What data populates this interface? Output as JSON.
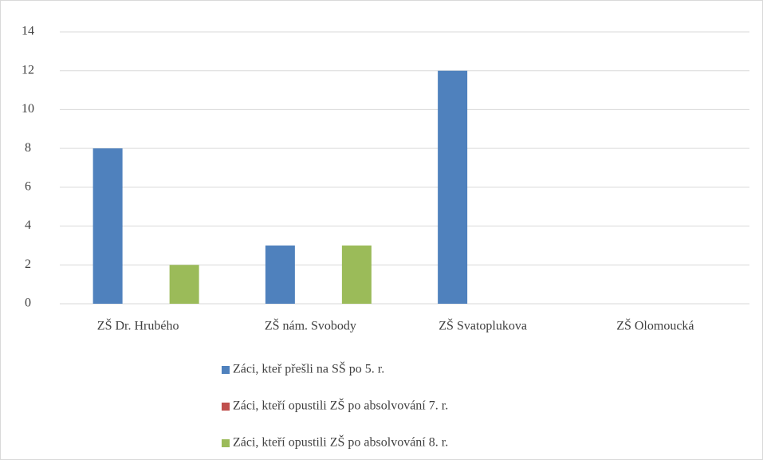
{
  "chart_data": {
    "type": "bar",
    "categories": [
      "ZŠ Dr. Hrubého",
      "ZŠ nám. Svobody",
      "ZŠ Svatoplukova",
      "ZŠ Olomoucká"
    ],
    "series": [
      {
        "name": "Záci, kteř přešli na SŠ po 5. r.",
        "color": "#4f81bd",
        "values": [
          8,
          3,
          12,
          0
        ]
      },
      {
        "name": "Záci, kteří opustili ZŠ po absolvování 7. r.",
        "color": "#c0504d",
        "values": [
          0,
          0,
          0,
          0
        ]
      },
      {
        "name": "Záci, kteří opustili ZŠ po absolvování 8. r.",
        "color": "#9bbb59",
        "values": [
          2,
          3,
          0,
          0
        ]
      }
    ],
    "ylim": [
      0,
      14
    ],
    "yticks": [
      0,
      2,
      4,
      6,
      8,
      10,
      12,
      14
    ],
    "grid": true,
    "legend": "bottom"
  }
}
